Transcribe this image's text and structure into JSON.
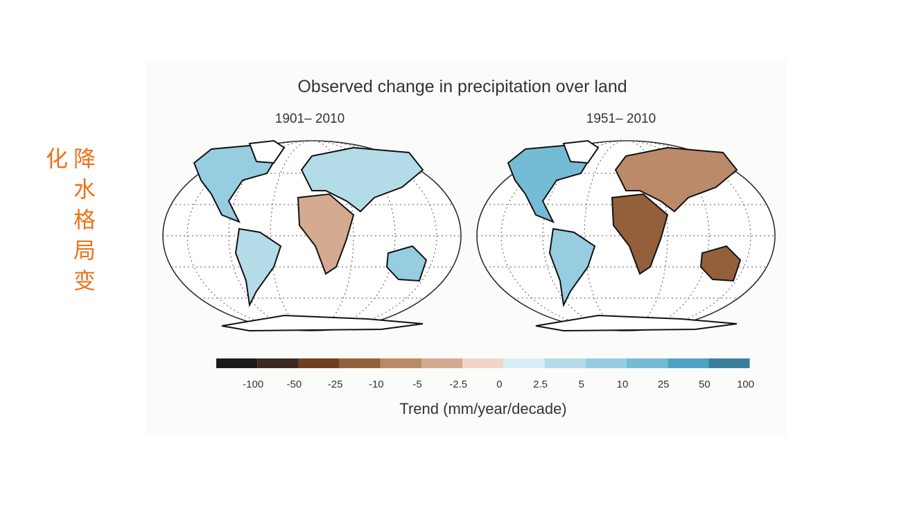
{
  "side_title": "降水格局变化",
  "figure": {
    "title": "Observed change in precipitation over land",
    "panels": [
      "1901– 2010",
      "1951– 2010"
    ],
    "colorbar": {
      "colors": [
        "#1a1a1a",
        "#3b2a22",
        "#6e3f22",
        "#94603c",
        "#bb8a68",
        "#d4ab90",
        "#efd6c8",
        "#d8eef5",
        "#b4dbe8",
        "#96cde0",
        "#74bcd6",
        "#4ea2c2",
        "#3b7f9a"
      ],
      "ticks": [
        "-100",
        "-50",
        "-25",
        "-10",
        "-5",
        "-2.5",
        "0",
        "2.5",
        "5",
        "10",
        "25",
        "50",
        "100"
      ],
      "label": "Trend (mm/year/decade)"
    }
  }
}
